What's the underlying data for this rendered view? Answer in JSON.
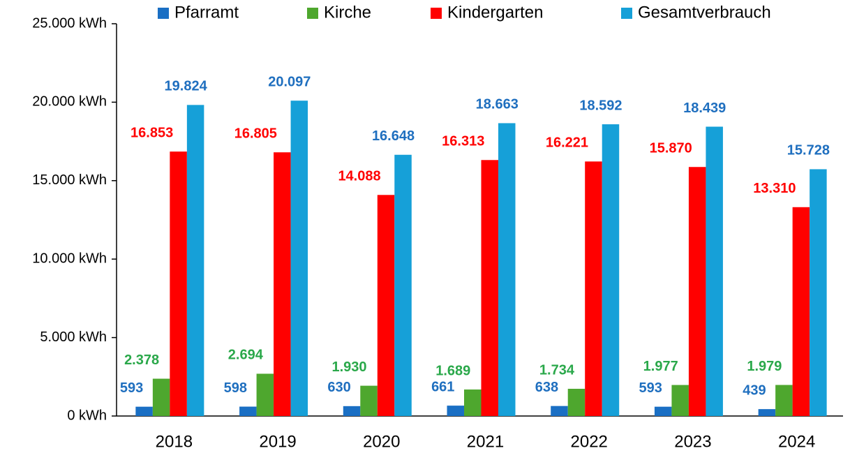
{
  "chart_data": {
    "type": "bar",
    "categories": [
      "2018",
      "2019",
      "2020",
      "2021",
      "2022",
      "2023",
      "2024"
    ],
    "series": [
      {
        "name": "Pfarramt",
        "color": "#1a6fc4",
        "label_color": "#1f6fbf",
        "values": [
          593,
          598,
          630,
          661,
          638,
          593,
          439
        ],
        "value_labels": [
          "593",
          "598",
          "630",
          "661",
          "638",
          "593",
          "439"
        ]
      },
      {
        "name": "Kirche",
        "color": "#4ea72e",
        "label_color": "#2aa84a",
        "values": [
          2378,
          2694,
          1930,
          1689,
          1734,
          1977,
          1979
        ],
        "value_labels": [
          "2.378",
          "2.694",
          "1.930",
          "1.689",
          "1.734",
          "1.977",
          "1.979"
        ]
      },
      {
        "name": "Kindergarten",
        "color": "#ff0000",
        "label_color": "#ff0000",
        "values": [
          16853,
          16805,
          14088,
          16313,
          16221,
          15870,
          13310
        ],
        "value_labels": [
          "16.853",
          "16.805",
          "14.088",
          "16.313",
          "16.221",
          "15.870",
          "13.310"
        ]
      },
      {
        "name": "Gesamtverbrauch",
        "color": "#16a0d8",
        "label_color": "#1f6fbf",
        "values": [
          19824,
          20097,
          16648,
          18663,
          18592,
          18439,
          15728
        ],
        "value_labels": [
          "19.824",
          "20.097",
          "16.648",
          "18.663",
          "18.592",
          "18.439",
          "15.728"
        ]
      }
    ],
    "ylim": [
      0,
      25000
    ],
    "yticks": [
      {
        "value": 0,
        "label": "0 kWh"
      },
      {
        "value": 5000,
        "label": "5.000 kWh"
      },
      {
        "value": 10000,
        "label": "10.000 kWh"
      },
      {
        "value": 15000,
        "label": "15.000 kWh"
      },
      {
        "value": 20000,
        "label": "20.000 kWh"
      },
      {
        "value": 25000,
        "label": "25.000 kWh"
      }
    ],
    "grid": false,
    "legend": "top"
  }
}
